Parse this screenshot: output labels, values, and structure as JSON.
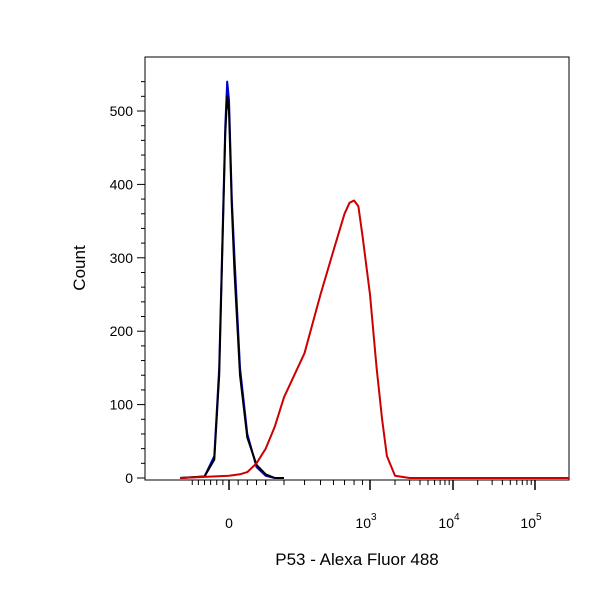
{
  "chart_data": {
    "type": "line",
    "xlabel": "P53 - Alexa Fluor 488",
    "ylabel": "Count",
    "xscale": "biexponential (linear near 0, log above)",
    "xlim": [
      -400,
      200000
    ],
    "ylim": [
      0,
      560
    ],
    "y_ticks": [
      0,
      100,
      200,
      300,
      400,
      500
    ],
    "x_ticks": [
      {
        "value": 0,
        "base": "0",
        "exp": ""
      },
      {
        "value": 1000,
        "base": "10",
        "exp": "3"
      },
      {
        "value": 10000,
        "base": "10",
        "exp": "4"
      },
      {
        "value": 100000,
        "base": "10",
        "exp": "5"
      }
    ],
    "grid": false,
    "legend": "none",
    "series": [
      {
        "color": "#0000cc",
        "x": [
          -400,
          -200,
          -120,
          -80,
          -50,
          -30,
          -15,
          0,
          15,
          30,
          60,
          100,
          150,
          200,
          250,
          300
        ],
        "y": [
          0,
          2,
          30,
          150,
          350,
          480,
          540,
          515,
          380,
          300,
          150,
          60,
          15,
          3,
          0,
          0
        ]
      },
      {
        "color": "#000000",
        "x": [
          -400,
          -200,
          -120,
          -80,
          -50,
          -30,
          -15,
          0,
          15,
          30,
          60,
          100,
          150,
          200,
          250,
          300
        ],
        "y": [
          0,
          2,
          25,
          140,
          340,
          470,
          520,
          500,
          370,
          280,
          140,
          55,
          18,
          5,
          0,
          0
        ]
      },
      {
        "color": "#cc0000",
        "x": [
          -400,
          0,
          60,
          100,
          150,
          200,
          250,
          300,
          400,
          500,
          600,
          700,
          750,
          800,
          850,
          900,
          1000,
          1200,
          1400,
          1600,
          2000,
          3000,
          10000,
          200000
        ],
        "y": [
          0,
          3,
          5,
          8,
          20,
          40,
          70,
          110,
          170,
          250,
          310,
          360,
          375,
          378,
          370,
          330,
          250,
          150,
          80,
          30,
          3,
          0,
          0,
          0
        ]
      }
    ]
  }
}
